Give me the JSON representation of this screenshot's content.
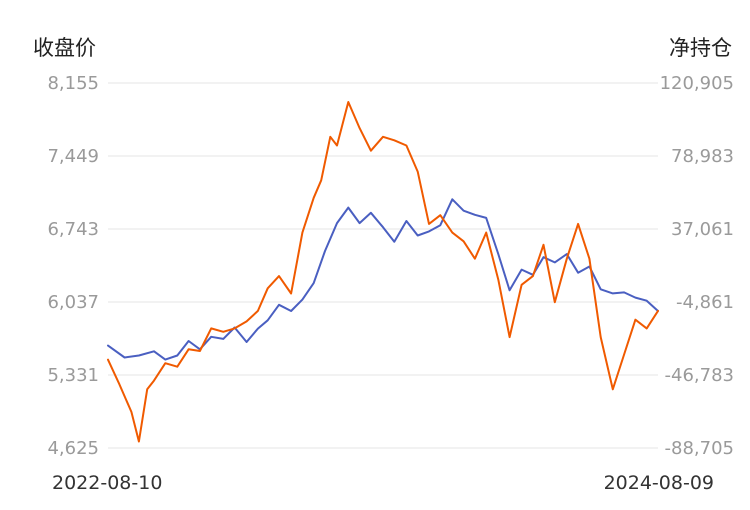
{
  "chart_data": {
    "type": "line",
    "left_axis_label": "收盘价",
    "right_axis_label": "净持仓",
    "left_axis": {
      "ticks": [
        8155,
        7449,
        6743,
        6037,
        5331,
        4625
      ],
      "tick_labels": [
        "8,155",
        "7,449",
        "6,743",
        "6,037",
        "5,331",
        "4,625"
      ],
      "range": [
        4625,
        8155
      ]
    },
    "right_axis": {
      "ticks": [
        120905,
        78983,
        37061,
        -4861,
        -46783,
        -88705
      ],
      "tick_labels": [
        "120,905",
        "78,983",
        "37,061",
        "-4,861",
        "-46,783",
        "-88,705"
      ],
      "range": [
        -88705,
        120905
      ]
    },
    "x_labels": [
      "2022-08-10",
      "2024-08-09"
    ],
    "x_range": [
      "2022-08-10",
      "2024-08-09"
    ],
    "grid": true,
    "series": [
      {
        "axis": "left",
        "color": "#4a5fc1",
        "x": [
          "2022-08-10",
          "2022-09-01",
          "2022-09-20",
          "2022-10-10",
          "2022-10-25",
          "2022-11-10",
          "2022-11-25",
          "2022-12-10",
          "2022-12-25",
          "2023-01-10",
          "2023-01-25",
          "2023-02-10",
          "2023-02-25",
          "2023-03-10",
          "2023-03-25",
          "2023-04-10",
          "2023-04-25",
          "2023-05-10",
          "2023-05-25",
          "2023-06-10",
          "2023-06-25",
          "2023-07-10",
          "2023-07-25",
          "2023-08-10",
          "2023-08-25",
          "2023-09-10",
          "2023-09-25",
          "2023-10-10",
          "2023-10-25",
          "2023-11-10",
          "2023-11-25",
          "2023-12-10",
          "2023-12-25",
          "2024-01-10",
          "2024-01-25",
          "2024-02-10",
          "2024-02-25",
          "2024-03-10",
          "2024-03-25",
          "2024-04-10",
          "2024-04-25",
          "2024-05-10",
          "2024-05-25",
          "2024-06-10",
          "2024-06-25",
          "2024-07-10",
          "2024-07-25",
          "2024-08-09"
        ],
        "y": [
          5615,
          5500,
          5520,
          5560,
          5480,
          5520,
          5660,
          5580,
          5700,
          5680,
          5790,
          5650,
          5780,
          5860,
          6010,
          5950,
          6060,
          6220,
          6530,
          6800,
          6950,
          6800,
          6900,
          6760,
          6620,
          6820,
          6680,
          6720,
          6780,
          7030,
          6920,
          6880,
          6850,
          6500,
          6150,
          6350,
          6300,
          6470,
          6420,
          6500,
          6320,
          6380,
          6160,
          6120,
          6130,
          6080,
          6050,
          5950
        ]
      },
      {
        "axis": "right",
        "color": "#f05a00",
        "x": [
          "2022-08-10",
          "2022-08-25",
          "2022-09-10",
          "2022-09-20",
          "2022-10-01",
          "2022-10-10",
          "2022-10-25",
          "2022-11-10",
          "2022-11-25",
          "2022-12-10",
          "2022-12-25",
          "2023-01-10",
          "2023-01-25",
          "2023-02-10",
          "2023-02-25",
          "2023-03-10",
          "2023-03-25",
          "2023-04-10",
          "2023-04-25",
          "2023-05-10",
          "2023-05-20",
          "2023-06-01",
          "2023-06-10",
          "2023-06-25",
          "2023-07-10",
          "2023-07-25",
          "2023-08-10",
          "2023-08-25",
          "2023-09-10",
          "2023-09-25",
          "2023-10-10",
          "2023-10-25",
          "2023-11-10",
          "2023-11-25",
          "2023-12-10",
          "2023-12-25",
          "2024-01-10",
          "2024-01-25",
          "2024-02-10",
          "2024-02-25",
          "2024-03-10",
          "2024-03-25",
          "2024-04-10",
          "2024-04-25",
          "2024-05-10",
          "2024-05-25",
          "2024-06-10",
          "2024-06-25",
          "2024-07-10",
          "2024-07-25",
          "2024-08-09"
        ],
        "y": [
          -38000,
          -52000,
          -68000,
          -85000,
          -55000,
          -50000,
          -40000,
          -42000,
          -32000,
          -33000,
          -20000,
          -22000,
          -20000,
          -16000,
          -10000,
          3000,
          10000,
          0,
          35000,
          55000,
          65000,
          90000,
          85000,
          110000,
          95000,
          82000,
          90000,
          88000,
          85000,
          70000,
          40000,
          45000,
          35000,
          30000,
          20000,
          35000,
          8000,
          -25000,
          5000,
          10000,
          28000,
          -5000,
          20000,
          40000,
          20000,
          -25000,
          -55000,
          -35000,
          -15000,
          -20000,
          -10000
        ]
      }
    ]
  }
}
